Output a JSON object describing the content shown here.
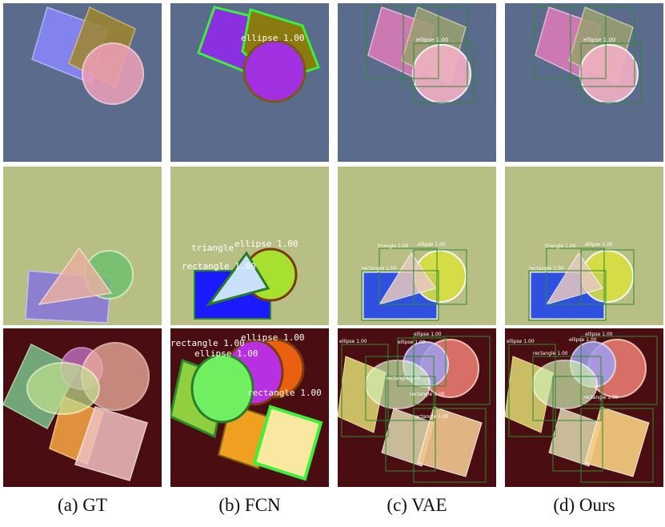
{
  "captions": [
    "(a)  GT",
    "(b)  FCN",
    "(c)  VAE",
    "(d)  Ours"
  ],
  "colors": {
    "row1_bg": "#5a6b8c",
    "row2_bg": "#b8bf84",
    "row3_bg": "#4a0e12",
    "contour": "#3cf03c",
    "box": "#2f8a2f"
  },
  "labels": {
    "fcn_row1": [
      "ellipse 1.00"
    ],
    "fcn_row2": [
      "triangle",
      "ellipse 1.00",
      "rectangle 1.00"
    ],
    "fcn_row3": [
      "rectangle 1.00",
      "ellipse 1.00",
      "ellipse 1.00",
      "rectangle 1.00"
    ],
    "vae_row1": [
      "ellipse 1.00"
    ],
    "vae_row2": [
      "triangle 1.00",
      "ellipse 1.00",
      "rectangle 1.00"
    ],
    "vae_row3": [
      "ellipse 1.00",
      "rectangle 1.00",
      "ellipse 1.00",
      "rectangle 1.00",
      "ellipse 1.00",
      "rectangle 1.00"
    ],
    "ours_row1": [
      "ellipse 1.00"
    ],
    "ours_row2": [
      "triangle 1.00",
      "ellipse 1.00",
      "rectangle 1.00"
    ],
    "ours_row3": [
      "ellipse 1.00",
      "rectangle 1.00",
      "ellipse 1.00",
      "ellipse 1.00",
      "rectangle 1.00"
    ]
  }
}
